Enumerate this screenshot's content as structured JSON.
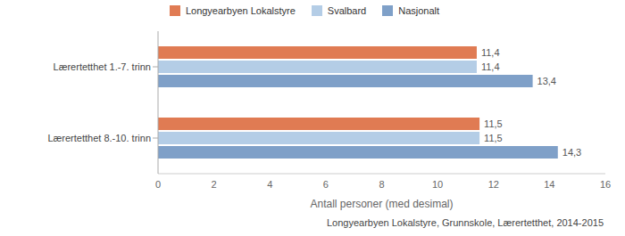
{
  "chart_data": {
    "type": "bar",
    "orientation": "horizontal",
    "categories": [
      "Lærertetthet 1.-7. trinn",
      "Lærertetthet 8.-10. trinn"
    ],
    "series": [
      {
        "name": "Longyearbyen Lokalstyre",
        "color": "#e07b53",
        "values": [
          11.4,
          11.5
        ],
        "value_labels": [
          "11,4",
          "11,5"
        ]
      },
      {
        "name": "Svalbard",
        "color": "#b4cde6",
        "values": [
          11.4,
          11.5
        ],
        "value_labels": [
          "11,4",
          "11,5"
        ]
      },
      {
        "name": "Nasjonalt",
        "color": "#7fa0c8",
        "values": [
          13.4,
          14.3
        ],
        "value_labels": [
          "13,4",
          "14,3"
        ]
      }
    ],
    "xlim": [
      0,
      16
    ],
    "xticks": [
      0,
      2,
      4,
      6,
      8,
      10,
      12,
      14,
      16
    ],
    "x_label": "Antall personer (med desimal)",
    "annotations": [
      "Longyearbyen Lokalstyre, Grunnskole, Lærertetthet, 2014-2015"
    ],
    "legend": "top",
    "data_labels": true,
    "grid": false
  }
}
